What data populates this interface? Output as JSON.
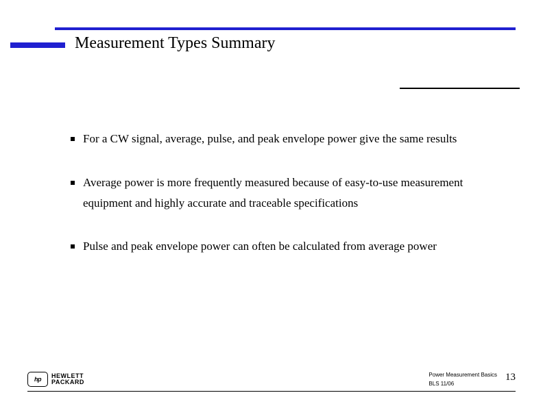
{
  "title": "Measurement Types Summary",
  "bullets": [
    "For a CW signal, average, pulse, and peak envelope power give the same results",
    "Average power is more frequently measured because of easy-to-use measurement equipment and highly accurate and traceable specifications",
    "Pulse and peak envelope power can often be calculated from average power"
  ],
  "footer": {
    "course": "Power Measurement Basics",
    "ref": "BLS  11/06",
    "page": "13"
  },
  "logo": {
    "badge": "hp",
    "line1": "HEWLETT",
    "line2": "PACKARD"
  },
  "colors": {
    "accent": "#2020d0",
    "text": "#000000",
    "background": "#ffffff"
  }
}
